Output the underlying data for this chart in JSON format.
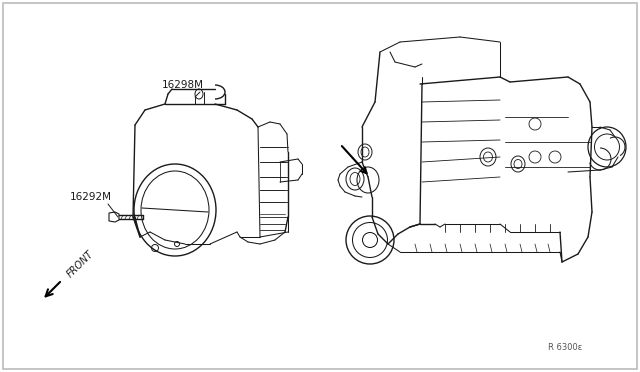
{
  "background_color": "#ffffff",
  "border_color": "#bbbbbb",
  "line_color": "#1a1a1a",
  "text_color": "#1a1a1a",
  "label_16298M": "16298M",
  "label_16292M": "16292M",
  "label_front": "FRONT",
  "label_ref": "R 6300ε",
  "fig_width": 6.4,
  "fig_height": 3.72,
  "dpi": 100
}
